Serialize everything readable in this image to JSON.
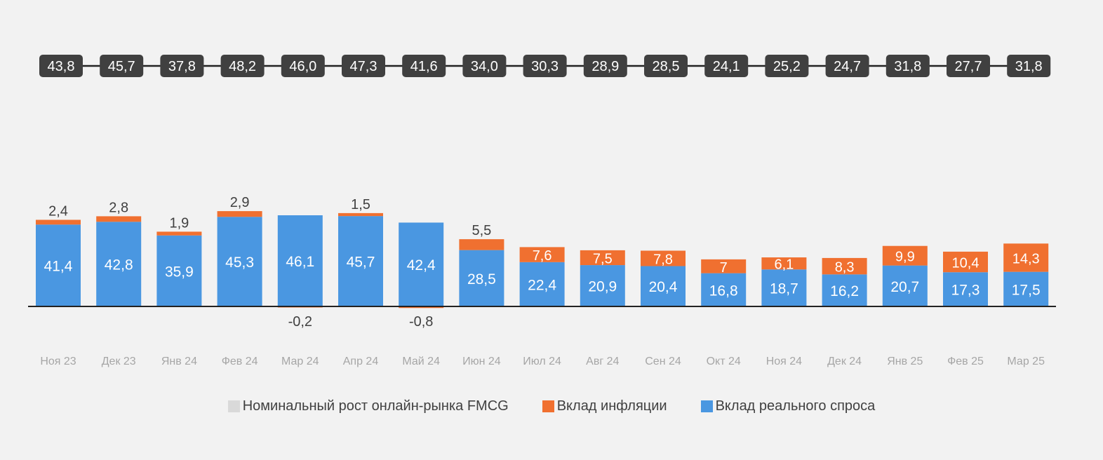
{
  "chart_data": {
    "type": "bar",
    "stacked": true,
    "categories": [
      "Ноя 23",
      "Дек 23",
      "Янв 24",
      "Фев 24",
      "Мар 24",
      "Апр 24",
      "Май 24",
      "Июн 24",
      "Июл 24",
      "Авг 24",
      "Сен 24",
      "Окт 24",
      "Ноя 24",
      "Дек 24",
      "Янв 25",
      "Фев 25",
      "Мар 25"
    ],
    "series": [
      {
        "name": "Номинальный рост онлайн-рынка FMCG",
        "color": "#d9d9d9",
        "values": [
          43.8,
          45.7,
          37.8,
          48.2,
          46.0,
          47.3,
          41.6,
          34.0,
          30.3,
          28.9,
          28.5,
          24.1,
          25.2,
          24.7,
          31.8,
          27.7,
          31.8
        ],
        "labels": [
          "43,8",
          "45,7",
          "37,8",
          "48,2",
          "46,0",
          "47,3",
          "41,6",
          "34,0",
          "30,3",
          "28,9",
          "28,5",
          "24,1",
          "25,2",
          "24,7",
          "31,8",
          "27,7",
          "31,8"
        ]
      },
      {
        "name": "Вклад инфляции",
        "color": "#f07030",
        "values": [
          2.4,
          2.8,
          1.9,
          2.9,
          -0.2,
          1.5,
          -0.8,
          5.5,
          7.6,
          7.5,
          7.8,
          7.0,
          6.1,
          8.3,
          9.9,
          10.4,
          14.3
        ],
        "labels": [
          "2,4",
          "2,8",
          "1,9",
          "2,9",
          "-0,2",
          "1,5",
          "-0,8",
          "5,5",
          "7,6",
          "7,5",
          "7,8",
          "7",
          "6,1",
          "8,3",
          "9,9",
          "10,4",
          "14,3"
        ]
      },
      {
        "name": "Вклад реального спроса",
        "color": "#4a97e1",
        "values": [
          41.4,
          42.8,
          35.9,
          45.3,
          46.1,
          45.7,
          42.4,
          28.5,
          22.4,
          20.9,
          20.4,
          16.8,
          18.7,
          16.2,
          20.7,
          17.3,
          17.5
        ],
        "labels": [
          "41,4",
          "42,8",
          "35,9",
          "45,3",
          "46,1",
          "45,7",
          "42,4",
          "28,5",
          "22,4",
          "20,9",
          "20,4",
          "16,8",
          "18,7",
          "16,2",
          "20,7",
          "17,3",
          "17,5"
        ]
      }
    ],
    "legend_position": "bottom",
    "grid": false
  }
}
